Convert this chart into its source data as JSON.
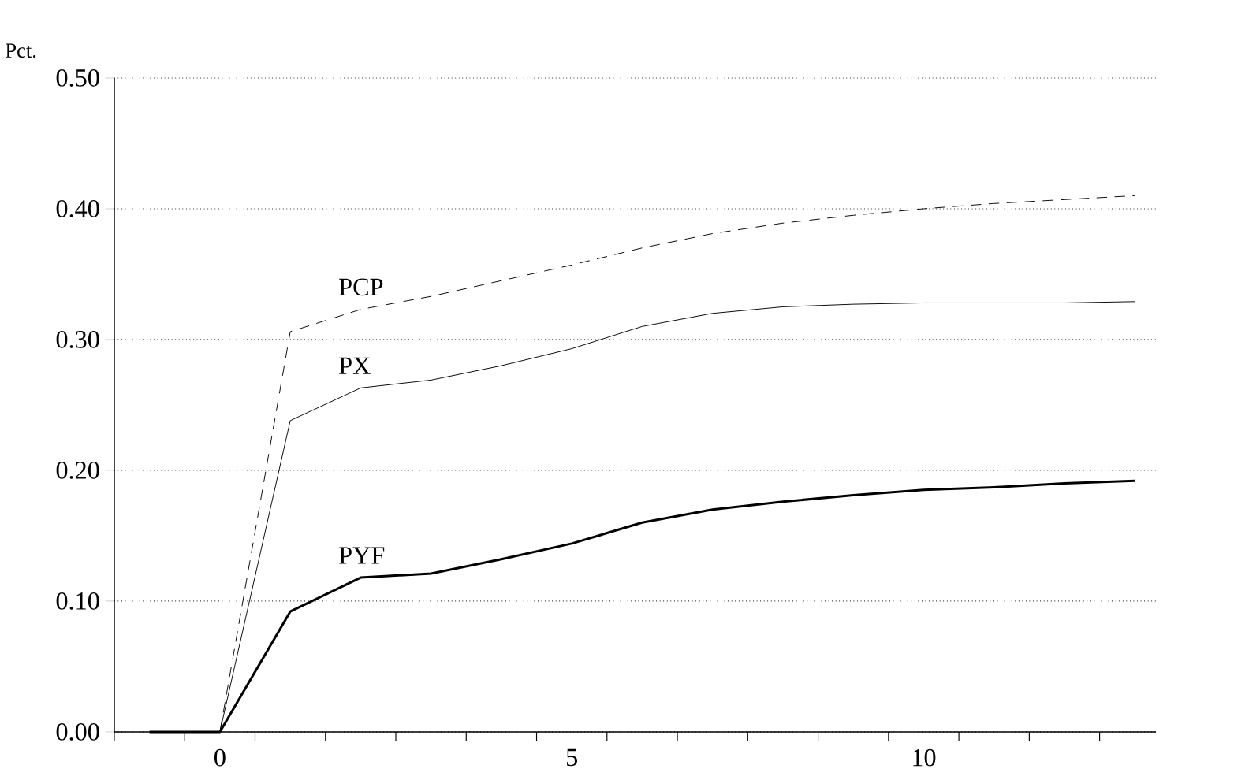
{
  "chart_data": {
    "type": "line",
    "ylabel": "Pct.",
    "x": [
      -1,
      0,
      1,
      2,
      3,
      4,
      5,
      6,
      7,
      8,
      9,
      10,
      11,
      12,
      13
    ],
    "series": [
      {
        "name": "PCP",
        "color": "#000000",
        "line_style": "dashed",
        "values": [
          0,
          0,
          0.306,
          0.323,
          0.333,
          0.345,
          0.357,
          0.37,
          0.381,
          0.389,
          0.395,
          0.4,
          0.404,
          0.407,
          0.41
        ]
      },
      {
        "name": "PX",
        "color": "#000000",
        "line_style": "solid",
        "values": [
          0,
          0,
          0.238,
          0.263,
          0.269,
          0.28,
          0.293,
          0.31,
          0.32,
          0.325,
          0.327,
          0.328,
          0.328,
          0.328,
          0.329
        ]
      },
      {
        "name": "PYF",
        "color": "#000000",
        "line_style": "solid",
        "values": [
          0,
          0,
          0.092,
          0.118,
          0.121,
          0.132,
          0.144,
          0.16,
          0.17,
          0.176,
          0.181,
          0.185,
          0.187,
          0.19,
          0.192
        ]
      }
    ],
    "xlim": [
      -1.5,
      13.3
    ],
    "ylim": [
      0,
      0.5
    ],
    "xticks": [
      {
        "value": -1.5,
        "label": null
      },
      {
        "value": -0.5,
        "label": null
      },
      0,
      {
        "value": 0.5,
        "label": null
      },
      {
        "value": 1.5,
        "label": null
      },
      {
        "value": 2.5,
        "label": null
      },
      {
        "value": 3.5,
        "label": null
      },
      {
        "value": 4.5,
        "label": null
      },
      5,
      {
        "value": 5.5,
        "label": null
      },
      {
        "value": 6.5,
        "label": null
      },
      {
        "value": 7.5,
        "label": null
      },
      {
        "value": 8.5,
        "label": null
      },
      {
        "value": 9.5,
        "label": null
      },
      10,
      {
        "value": 10.5,
        "label": null
      },
      {
        "value": 11.5,
        "label": null
      },
      {
        "value": 12.5,
        "label": null
      }
    ],
    "yticks": [
      {
        "value": 0,
        "label": "0.00"
      },
      {
        "value": 0.1,
        "label": "0.10"
      },
      {
        "value": 0.2,
        "label": "0.20"
      },
      {
        "value": 0.3,
        "label": "0.30"
      },
      {
        "value": 0.4,
        "label": "0.40"
      },
      {
        "value": 0.5,
        "label": "0.50"
      }
    ],
    "grid": "y",
    "marker": "none"
  }
}
